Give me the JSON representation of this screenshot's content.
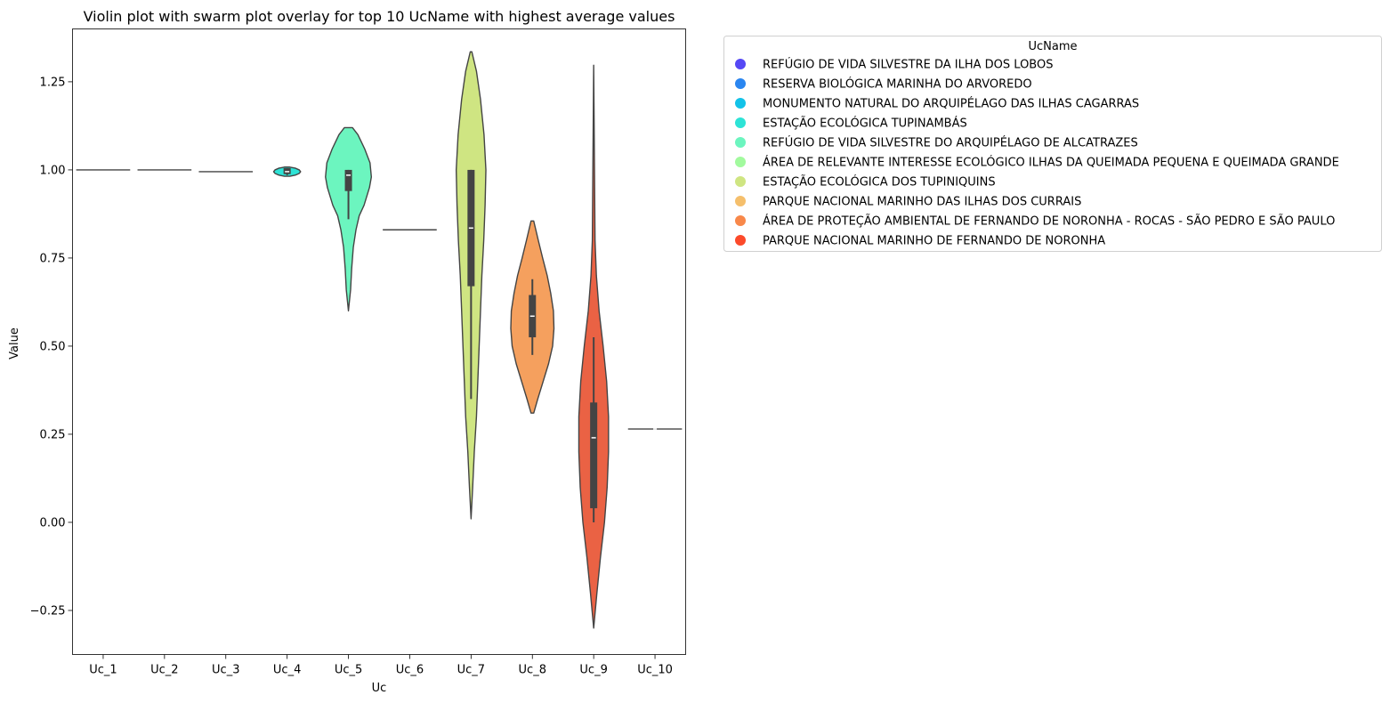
{
  "chart_data": {
    "type": "violin",
    "title": "Violin plot with swarm plot overlay for top 10 UcName with highest average values",
    "xlabel": "Uc",
    "ylabel": "Value",
    "ylim": [
      -0.375,
      1.4
    ],
    "yticks": [
      -0.25,
      0.0,
      0.25,
      0.5,
      0.75,
      1.0,
      1.25
    ],
    "ytick_labels": [
      "−0.25",
      "0.00",
      "0.25",
      "0.50",
      "0.75",
      "1.00",
      "1.25"
    ],
    "categories": [
      "Uc_1",
      "Uc_2",
      "Uc_3",
      "Uc_4",
      "Uc_5",
      "Uc_6",
      "Uc_7",
      "Uc_8",
      "Uc_9",
      "Uc_10"
    ],
    "legend": {
      "title": "UcName",
      "position": "outside-right",
      "entries": [
        {
          "label": "REFÚGIO DE VIDA SILVESTRE DA ILHA DOS LOBOS",
          "color": "#5548f5"
        },
        {
          "label": "RESERVA BIOLÓGICA MARINHA DO ARVOREDO",
          "color": "#2a86f0"
        },
        {
          "label": "MONUMENTO NATURAL DO ARQUIPÉLAGO DAS ILHAS CAGARRAS",
          "color": "#12c2e8"
        },
        {
          "label": "ESTAÇÃO ECOLÓGICA TUPINAMBÁS",
          "color": "#2de3d6"
        },
        {
          "label": "REFÚGIO DE VIDA SILVESTRE DO ARQUIPÉLAGO DE ALCATRAZES",
          "color": "#6cf5bf"
        },
        {
          "label": "ÁREA DE RELEVANTE INTERESSE ECOLÓGICO ILHAS DA QUEIMADA PEQUENA E QUEIMADA GRANDE",
          "color": "#a2fa9e"
        },
        {
          "label": "ESTAÇÃO ECOLÓGICA DOS TUPINIQUINS",
          "color": "#cfe582"
        },
        {
          "label": "PARQUE NACIONAL MARINHO DAS ILHAS DOS CURRAIS",
          "color": "#f5bf6c"
        },
        {
          "label": "ÁREA DE PROTEÇÃO AMBIENTAL DE FERNANDO DE NORONHA - ROCAS - SÃO PEDRO E SÃO PAULO",
          "color": "#f8884a"
        },
        {
          "label": "PARQUE NACIONAL MARINHO DE FERNANDO DE NORONHA",
          "color": "#fc4a2a"
        }
      ]
    },
    "violins": [
      {
        "category": "Uc_1",
        "color": "#5548f5",
        "profile": [
          [
            1.0,
            0.0
          ]
        ],
        "median": 1.0
      },
      {
        "category": "Uc_2",
        "color": "#2a86f0",
        "profile": [
          [
            1.0,
            0.0
          ]
        ],
        "median": 1.0
      },
      {
        "category": "Uc_3",
        "color": "#12c2e8",
        "profile": [
          [
            0.995,
            0.0
          ]
        ],
        "median": 0.995
      },
      {
        "category": "Uc_4",
        "color": "#2de3d6",
        "profile": [
          [
            0.982,
            0.1
          ],
          [
            0.985,
            0.3
          ],
          [
            0.99,
            0.45
          ],
          [
            0.995,
            0.5
          ],
          [
            1.0,
            0.45
          ],
          [
            1.005,
            0.3
          ],
          [
            1.008,
            0.1
          ]
        ],
        "box": {
          "q1": 0.988,
          "q3": 1.005,
          "wlow": 0.985,
          "whigh": 1.005
        },
        "median": 0.995
      },
      {
        "category": "Uc_5",
        "color": "#6cf5bf",
        "profile": [
          [
            0.6,
            0.0
          ],
          [
            0.66,
            0.08
          ],
          [
            0.72,
            0.12
          ],
          [
            0.78,
            0.18
          ],
          [
            0.83,
            0.28
          ],
          [
            0.87,
            0.4
          ],
          [
            0.9,
            0.58
          ],
          [
            0.95,
            0.78
          ],
          [
            0.98,
            0.85
          ],
          [
            1.02,
            0.8
          ],
          [
            1.06,
            0.6
          ],
          [
            1.1,
            0.35
          ],
          [
            1.12,
            0.15
          ]
        ],
        "box": {
          "q1": 0.94,
          "q3": 1.0,
          "wlow": 0.86,
          "whigh": 1.0
        },
        "median": 0.985
      },
      {
        "category": "Uc_6",
        "color": "#a2fa9e",
        "profile": [
          [
            0.83,
            0.0
          ]
        ],
        "median": 0.83
      },
      {
        "category": "Uc_7",
        "color": "#cfe582",
        "profile": [
          [
            0.01,
            0.0
          ],
          [
            0.1,
            0.06
          ],
          [
            0.2,
            0.12
          ],
          [
            0.3,
            0.2
          ],
          [
            0.4,
            0.25
          ],
          [
            0.5,
            0.3
          ],
          [
            0.6,
            0.35
          ],
          [
            0.7,
            0.4
          ],
          [
            0.8,
            0.47
          ],
          [
            0.9,
            0.52
          ],
          [
            1.0,
            0.55
          ],
          [
            1.1,
            0.48
          ],
          [
            1.2,
            0.35
          ],
          [
            1.28,
            0.2
          ],
          [
            1.335,
            0.03
          ]
        ],
        "box": {
          "q1": 0.67,
          "q3": 1.0,
          "wlow": 0.35,
          "whigh": 1.0
        },
        "median": 0.835
      },
      {
        "category": "Uc_8",
        "color": "#f5a05e",
        "profile": [
          [
            0.31,
            0.05
          ],
          [
            0.35,
            0.2
          ],
          [
            0.4,
            0.4
          ],
          [
            0.45,
            0.6
          ],
          [
            0.5,
            0.75
          ],
          [
            0.55,
            0.8
          ],
          [
            0.6,
            0.78
          ],
          [
            0.65,
            0.68
          ],
          [
            0.7,
            0.55
          ],
          [
            0.75,
            0.38
          ],
          [
            0.8,
            0.22
          ],
          [
            0.855,
            0.05
          ]
        ],
        "box": {
          "q1": 0.525,
          "q3": 0.645,
          "wlow": 0.475,
          "whigh": 0.69
        },
        "median": 0.585
      },
      {
        "category": "Uc_9",
        "color": "#ea6244",
        "profile": [
          [
            -0.3,
            0.0
          ],
          [
            -0.2,
            0.12
          ],
          [
            -0.1,
            0.25
          ],
          [
            0.0,
            0.4
          ],
          [
            0.1,
            0.5
          ],
          [
            0.2,
            0.55
          ],
          [
            0.3,
            0.55
          ],
          [
            0.4,
            0.48
          ],
          [
            0.5,
            0.35
          ],
          [
            0.6,
            0.2
          ],
          [
            0.7,
            0.1
          ],
          [
            0.8,
            0.05
          ],
          [
            1.0,
            0.03
          ],
          [
            1.297,
            0.0
          ]
        ],
        "box": {
          "q1": 0.04,
          "q3": 0.34,
          "wlow": 0.0,
          "whigh": 0.525
        },
        "median": 0.24
      },
      {
        "category": "Uc_10",
        "color": "#ffffff",
        "profile": [
          [
            0.265,
            0.0
          ]
        ],
        "median": 0.265
      }
    ]
  }
}
